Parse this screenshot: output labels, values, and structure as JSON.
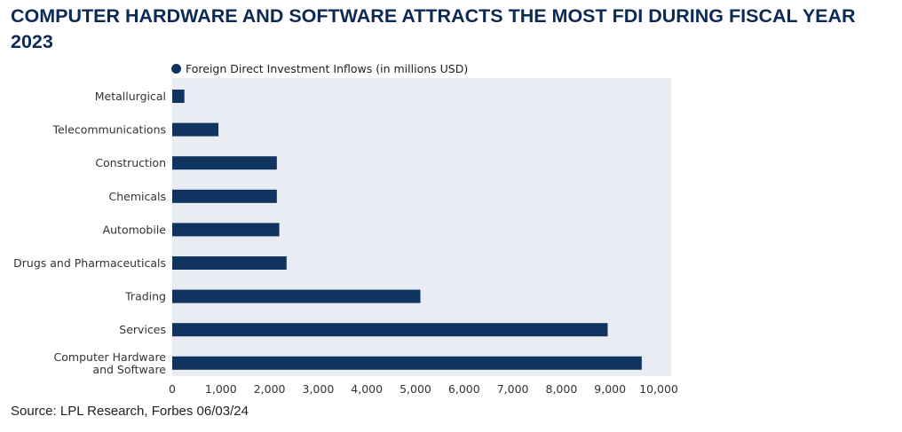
{
  "title": "COMPUTER HARDWARE AND SOFTWARE ATTRACTS THE MOST FDI DURING FISCAL YEAR 2023",
  "source": "Source: LPL Research, Forbes 06/03/24",
  "colors": {
    "bar": "#0f3460",
    "plot_background": "#e9ecf3",
    "title": "#0b2a55"
  },
  "chart_data": {
    "type": "bar",
    "orientation": "horizontal",
    "title": "COMPUTER HARDWARE AND SOFTWARE ATTRACTS THE MOST FDI DURING FISCAL YEAR 2023",
    "categories": [
      "Metallurgical",
      "Telecommunications",
      "Construction",
      "Chemicals",
      "Automobile",
      "Drugs and Pharmaceuticals",
      "Trading",
      "Services",
      "Computer Hardware and Software"
    ],
    "category_label_lines": [
      [
        "Metallurgical"
      ],
      [
        "Telecommunications"
      ],
      [
        "Construction"
      ],
      [
        "Chemicals"
      ],
      [
        "Automobile"
      ],
      [
        "Drugs and Pharmaceuticals"
      ],
      [
        "Trading"
      ],
      [
        "Services"
      ],
      [
        "Computer Hardware",
        "and Software"
      ]
    ],
    "series": [
      {
        "name": "Foreign Direct Investment Inflows (in millions USD)",
        "values": [
          250,
          950,
          2150,
          2150,
          2200,
          2350,
          5100,
          8950,
          9650
        ]
      }
    ],
    "xlim": [
      0,
      10000
    ],
    "xticks": [
      0,
      1000,
      2000,
      3000,
      4000,
      5000,
      6000,
      7000,
      8000,
      9000,
      10000
    ],
    "xtick_labels": [
      "0",
      "1,000",
      "2,000",
      "3,000",
      "4,000",
      "5,000",
      "6,000",
      "7,000",
      "8,000",
      "9,000",
      "10,000"
    ],
    "legend_position": "top-left",
    "grid": false
  }
}
